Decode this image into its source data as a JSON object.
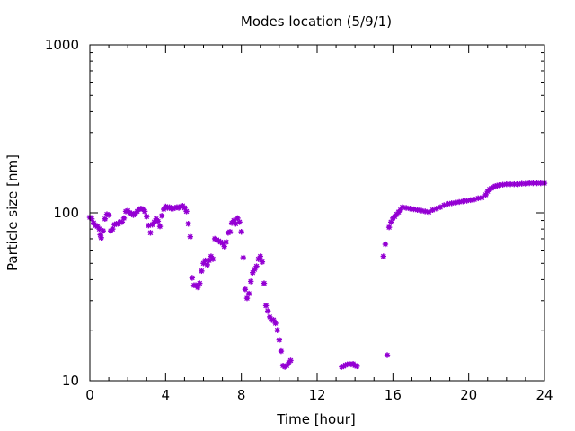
{
  "chart_data": {
    "type": "scatter",
    "title": "Modes location (5/9/1)",
    "xlabel": "Time [hour]",
    "ylabel": "Particle size [nm]",
    "xlim": [
      0,
      24
    ],
    "ylim": [
      10,
      1000
    ],
    "yscale": "log",
    "grid": false,
    "legend": "none",
    "xticks": [
      0,
      4,
      8,
      12,
      16,
      20,
      24
    ],
    "xtick_labels": [
      "0",
      "4",
      "8",
      "12",
      "16",
      "20",
      "24"
    ],
    "yticks": [
      10,
      100,
      1000
    ],
    "ytick_labels": [
      "10",
      "100",
      "1000"
    ],
    "color": "#9400d3",
    "series": [
      {
        "points": [
          [
            0.0,
            94
          ],
          [
            0.1,
            92
          ],
          [
            0.2,
            87
          ],
          [
            0.3,
            84
          ],
          [
            0.4,
            83
          ],
          [
            0.5,
            80
          ],
          [
            0.55,
            74
          ],
          [
            0.6,
            71
          ],
          [
            0.7,
            78
          ],
          [
            0.8,
            92
          ],
          [
            0.9,
            98
          ],
          [
            1.0,
            97
          ],
          [
            1.1,
            78
          ],
          [
            1.2,
            80
          ],
          [
            1.3,
            85
          ],
          [
            1.4,
            86
          ],
          [
            1.5,
            86
          ],
          [
            1.6,
            88
          ],
          [
            1.7,
            88
          ],
          [
            1.8,
            93
          ],
          [
            1.9,
            102
          ],
          [
            2.0,
            103
          ],
          [
            2.1,
            100
          ],
          [
            2.2,
            99
          ],
          [
            2.3,
            97
          ],
          [
            2.4,
            99
          ],
          [
            2.5,
            102
          ],
          [
            2.6,
            105
          ],
          [
            2.7,
            106
          ],
          [
            2.8,
            105
          ],
          [
            2.9,
            102
          ],
          [
            3.0,
            95
          ],
          [
            3.1,
            84
          ],
          [
            3.2,
            76
          ],
          [
            3.3,
            85
          ],
          [
            3.4,
            88
          ],
          [
            3.5,
            92
          ],
          [
            3.6,
            89
          ],
          [
            3.7,
            83
          ],
          [
            3.8,
            96
          ],
          [
            3.9,
            105
          ],
          [
            4.0,
            109
          ],
          [
            4.1,
            107
          ],
          [
            4.2,
            108
          ],
          [
            4.3,
            106
          ],
          [
            4.4,
            106
          ],
          [
            4.5,
            107
          ],
          [
            4.6,
            108
          ],
          [
            4.7,
            107
          ],
          [
            4.8,
            109
          ],
          [
            4.9,
            110
          ],
          [
            5.0,
            107
          ],
          [
            5.1,
            102
          ],
          [
            5.2,
            86
          ],
          [
            5.3,
            72
          ],
          [
            5.4,
            41
          ],
          [
            5.5,
            37
          ],
          [
            5.6,
            37
          ],
          [
            5.7,
            36
          ],
          [
            5.8,
            38
          ],
          [
            5.9,
            45
          ],
          [
            6.0,
            50
          ],
          [
            6.1,
            52
          ],
          [
            6.2,
            49
          ],
          [
            6.3,
            52
          ],
          [
            6.4,
            55
          ],
          [
            6.5,
            53
          ],
          [
            6.6,
            70
          ],
          [
            6.7,
            69
          ],
          [
            6.8,
            68
          ],
          [
            6.9,
            67
          ],
          [
            7.0,
            66
          ],
          [
            7.1,
            63
          ],
          [
            7.2,
            67
          ],
          [
            7.3,
            76
          ],
          [
            7.4,
            77
          ],
          [
            7.5,
            87
          ],
          [
            7.6,
            90
          ],
          [
            7.7,
            86
          ],
          [
            7.8,
            93
          ],
          [
            7.9,
            88
          ],
          [
            8.0,
            77
          ],
          [
            8.1,
            54
          ],
          [
            8.2,
            35
          ],
          [
            8.3,
            31
          ],
          [
            8.4,
            33
          ],
          [
            8.5,
            39
          ],
          [
            8.6,
            44
          ],
          [
            8.7,
            46
          ],
          [
            8.8,
            48
          ],
          [
            8.9,
            53
          ],
          [
            9.0,
            55
          ],
          [
            9.1,
            51
          ],
          [
            9.2,
            38
          ],
          [
            9.3,
            28
          ],
          [
            9.4,
            26
          ],
          [
            9.5,
            24
          ],
          [
            9.6,
            23
          ],
          [
            9.7,
            23
          ],
          [
            9.8,
            22
          ],
          [
            9.9,
            20
          ],
          [
            10.0,
            17.5
          ],
          [
            10.1,
            15
          ],
          [
            10.2,
            12.3
          ],
          [
            10.3,
            12.1
          ],
          [
            10.4,
            12.3
          ],
          [
            10.5,
            12.8
          ],
          [
            10.6,
            13.2
          ],
          [
            13.3,
            12.1
          ],
          [
            13.4,
            12.2
          ],
          [
            13.5,
            12.4
          ],
          [
            13.6,
            12.5
          ],
          [
            13.7,
            12.6
          ],
          [
            13.8,
            12.5
          ],
          [
            13.9,
            12.6
          ],
          [
            14.0,
            12.3
          ],
          [
            14.1,
            12.2
          ],
          [
            15.5,
            55
          ],
          [
            15.6,
            65
          ],
          [
            15.7,
            14.2
          ],
          [
            15.8,
            82
          ],
          [
            15.9,
            88
          ],
          [
            16.0,
            93
          ],
          [
            16.1,
            95
          ],
          [
            16.2,
            98
          ],
          [
            16.3,
            101
          ],
          [
            16.4,
            104
          ],
          [
            16.5,
            108
          ],
          [
            16.7,
            107
          ],
          [
            16.9,
            106
          ],
          [
            17.1,
            105
          ],
          [
            17.3,
            104
          ],
          [
            17.5,
            103
          ],
          [
            17.7,
            102
          ],
          [
            17.9,
            101
          ],
          [
            18.1,
            104
          ],
          [
            18.3,
            106
          ],
          [
            18.5,
            108
          ],
          [
            18.7,
            111
          ],
          [
            18.9,
            113
          ],
          [
            19.1,
            114
          ],
          [
            19.3,
            115
          ],
          [
            19.5,
            116
          ],
          [
            19.7,
            117
          ],
          [
            19.9,
            118
          ],
          [
            20.1,
            119
          ],
          [
            20.3,
            120
          ],
          [
            20.5,
            122
          ],
          [
            20.7,
            123
          ],
          [
            20.9,
            128
          ],
          [
            21.0,
            134
          ],
          [
            21.1,
            138
          ],
          [
            21.2,
            140
          ],
          [
            21.3,
            142
          ],
          [
            21.4,
            144
          ],
          [
            21.5,
            145
          ],
          [
            21.6,
            146
          ],
          [
            21.8,
            147
          ],
          [
            22.0,
            148
          ],
          [
            22.2,
            148
          ],
          [
            22.4,
            148
          ],
          [
            22.6,
            148
          ],
          [
            22.8,
            149
          ],
          [
            23.0,
            149
          ],
          [
            23.2,
            150
          ],
          [
            23.4,
            150
          ],
          [
            23.6,
            150
          ],
          [
            23.8,
            150
          ],
          [
            24.0,
            150
          ]
        ]
      }
    ]
  }
}
